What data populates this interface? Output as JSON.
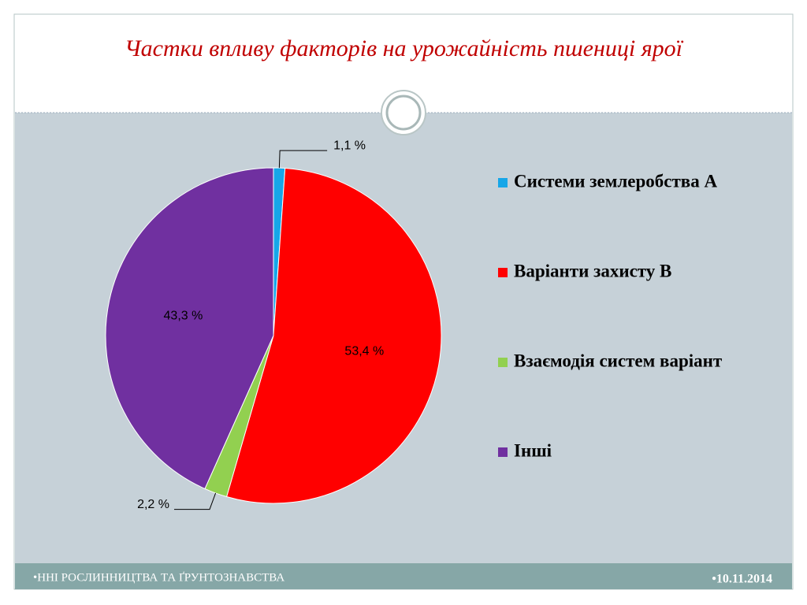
{
  "chart_data": {
    "type": "pie",
    "title": "Частки впливу факторів на урожайність пшениці ярої",
    "categories": [
      "Системи землеробства А",
      "Варіанти захисту В",
      "Взаємодія систем варіант",
      "Інші"
    ],
    "values": [
      1.1,
      53.4,
      2.2,
      43.3
    ],
    "value_labels": [
      "1,1 %",
      "53,4 %",
      "2,2 %",
      "43,3 %"
    ],
    "colors": [
      "#16a6e8",
      "#ff0000",
      "#92d050",
      "#7030a0"
    ],
    "legend": "right"
  },
  "footer": {
    "left": "•ННІ РОСЛИННИЦТВА ТА ҐРУНТОЗНАВСТВА",
    "right": "•10.11.2014"
  }
}
